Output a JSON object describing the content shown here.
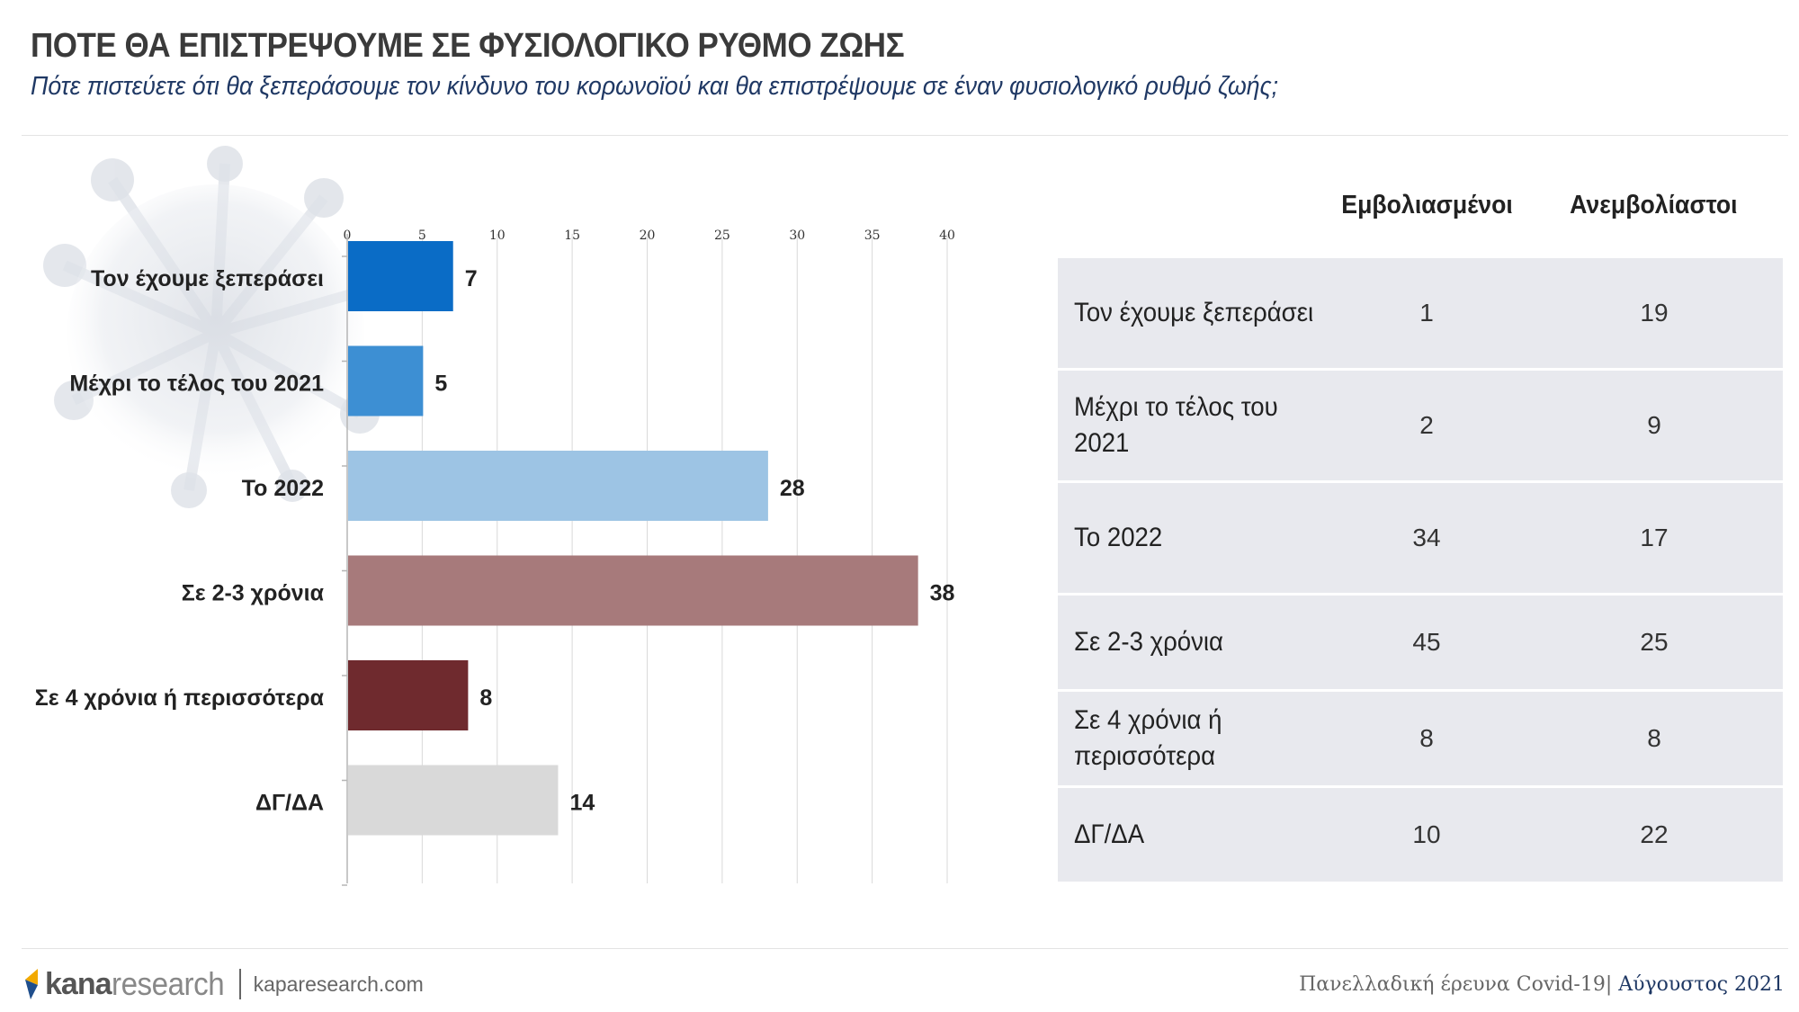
{
  "header": {
    "title": "ΠΟΤΕ ΘΑ ΕΠΙΣΤΡΕΨΟΥΜΕ ΣΕ ΦΥΣΙΟΛΟΓΙΚΟ ΡΥΘΜΟ ΖΩΗΣ",
    "subtitle": "Πότε πιστεύετε ότι θα ξεπεράσουμε τον κίνδυνο του κορωνοϊού και θα επιστρέψουμε σε έναν φυσιολογικό ρυθμό ζωής;"
  },
  "chart_data": {
    "type": "bar",
    "orientation": "horizontal",
    "categories": [
      "Τον έχουμε ξεπεράσει",
      "Μέχρι το τέλος του 2021",
      "Το 2022",
      "Σε 2-3 χρόνια",
      "Σε 4 χρόνια ή περισσότερα",
      "ΔΓ/ΔΑ"
    ],
    "values": [
      7,
      5,
      28,
      38,
      8,
      14
    ],
    "colors": [
      "#0a6cc6",
      "#3d8fd3",
      "#9dc4e4",
      "#a77a7b",
      "#6f2a2e",
      "#d9d9d9"
    ],
    "xlim": [
      0,
      40
    ],
    "ticks": [
      0,
      5,
      10,
      15,
      20,
      25,
      30,
      35,
      40
    ],
    "tick_position": "top",
    "grid": true,
    "legend": "none"
  },
  "table": {
    "headers": [
      "Εμβολιασμένοι",
      "Ανεμβολίαστοι"
    ],
    "rows": [
      {
        "label": "Τον έχουμε ξεπεράσει",
        "vaccinated": "1",
        "unvaccinated": "19"
      },
      {
        "label": "Μέχρι το τέλος του 2021",
        "vaccinated": "2",
        "unvaccinated": "9"
      },
      {
        "label": "Το 2022",
        "vaccinated": "34",
        "unvaccinated": "17"
      },
      {
        "label": "Σε 2-3 χρόνια",
        "vaccinated": "45",
        "unvaccinated": "25"
      },
      {
        "label": "Σε 4 χρόνια ή περισσότερα",
        "vaccinated": "8",
        "unvaccinated": "8"
      },
      {
        "label": "ΔΓ/ΔΑ",
        "vaccinated": "10",
        "unvaccinated": "22"
      }
    ]
  },
  "footer": {
    "logo_kana": "kana",
    "logo_research": "research",
    "url": "kaparesearch.com",
    "survey": "Πανελλαδική έρευνα Covid-19| ",
    "month": "Αύγουστος 2021"
  },
  "colors": {
    "title": "#3a3a3a",
    "subtitle": "#1f3864",
    "table_bg": "#e8e9ee"
  }
}
